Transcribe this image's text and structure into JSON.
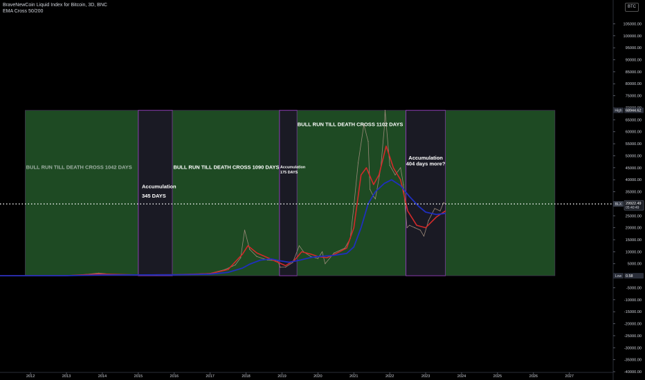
{
  "header": {
    "title": "BraveNewCoin Liquid Index for Bitcoin, 3D, BNC",
    "indicator": "EMA Cross 50/200",
    "symbol_button": "BTC"
  },
  "colors": {
    "background": "#000000",
    "bull_zone": "#1e4a23",
    "accumulation_zone": "#1a1a24",
    "zone_border": "#8a3bb0",
    "price_line": "#9c8a7a",
    "ema_fast": "#d42a2a",
    "ema_slow": "#1f2fbf",
    "current_line": "#ffffff",
    "axis_text": "#d1d4dc"
  },
  "chart_data": {
    "type": "line",
    "title": "",
    "xlabel": "",
    "ylabel": "",
    "xlim": [
      2011.15,
      2028.2
    ],
    "ylim": [
      -40000,
      108000
    ],
    "x_ticks": [
      "2012",
      "2013",
      "2014",
      "2015",
      "2016",
      "2017",
      "2018",
      "2019",
      "2020",
      "2021",
      "2022",
      "2023",
      "2024",
      "2025",
      "2026",
      "2027"
    ],
    "y_ticks": [
      "105000.00",
      "100000.00",
      "95000.00",
      "90000.00",
      "85000.00",
      "80000.00",
      "75000.00",
      "70000.00",
      "65000.00",
      "60000.00",
      "55000.00",
      "50000.00",
      "45000.00",
      "40000.00",
      "35000.00",
      "30000.00",
      "25000.00",
      "20000.00",
      "15000.00",
      "10000.00",
      "5000.00",
      "0.00",
      "-5000.00",
      "-10000.00",
      "-15000.00",
      "-20000.00",
      "-25000.00",
      "-30000.00",
      "-35000.00",
      "-40000.00"
    ],
    "price_markers": [
      {
        "label": "High",
        "value": "68944.62",
        "y": 68944.62
      },
      {
        "label": "BLX",
        "value": "29922.49",
        "sub": "05:40:49",
        "y": 29922.49
      },
      {
        "label": "Low",
        "value": "0.58",
        "y": 0.58
      }
    ],
    "zones": [
      {
        "type": "bull",
        "x0": 2011.85,
        "x1": 2015.0,
        "label": "BULL RUN TILL DEATH CROSS 1042 DAYS"
      },
      {
        "type": "accumulation",
        "x0": 2015.0,
        "x1": 2015.95,
        "label": "Accumulation",
        "label2": "345 DAYS"
      },
      {
        "type": "bull",
        "x0": 2015.95,
        "x1": 2018.93,
        "label": "BULL RUN TILL DEATH CROSS 1090 DAYS"
      },
      {
        "type": "accumulation",
        "x0": 2018.93,
        "x1": 2019.42,
        "label": "Accumulation",
        "label2": "175 DAYS"
      },
      {
        "type": "bull",
        "x0": 2019.42,
        "x1": 2022.45,
        "label": "BULL RUN TILL DEATH CROSS 1102 DAYS"
      },
      {
        "type": "accumulation",
        "x0": 2022.45,
        "x1": 2023.55,
        "label": "Accumulation",
        "label2": "404 days more?"
      },
      {
        "type": "bull",
        "x0": 2023.55,
        "x1": 2026.6,
        "label": ""
      }
    ],
    "series": [
      {
        "name": "",
        "role": "price",
        "points": [
          [
            2011.0,
            0.3
          ],
          [
            2012.0,
            5
          ],
          [
            2013.0,
            13
          ],
          [
            2013.3,
            200
          ],
          [
            2013.9,
            1100
          ],
          [
            2014.3,
            500
          ],
          [
            2014.9,
            330
          ],
          [
            2015.5,
            250
          ],
          [
            2016.0,
            430
          ],
          [
            2016.5,
            650
          ],
          [
            2017.0,
            1000
          ],
          [
            2017.4,
            2500
          ],
          [
            2017.7,
            4500
          ],
          [
            2017.85,
            7500
          ],
          [
            2017.96,
            19000
          ],
          [
            2018.1,
            11000
          ],
          [
            2018.3,
            8000
          ],
          [
            2018.6,
            6500
          ],
          [
            2018.88,
            6300
          ],
          [
            2018.95,
            3500
          ],
          [
            2019.1,
            3600
          ],
          [
            2019.3,
            5500
          ],
          [
            2019.48,
            12500
          ],
          [
            2019.6,
            10000
          ],
          [
            2019.8,
            8000
          ],
          [
            2020.0,
            7200
          ],
          [
            2020.12,
            10000
          ],
          [
            2020.2,
            5000
          ],
          [
            2020.45,
            9500
          ],
          [
            2020.75,
            11500
          ],
          [
            2020.9,
            15500
          ],
          [
            2021.0,
            29000
          ],
          [
            2021.12,
            47000
          ],
          [
            2021.28,
            63000
          ],
          [
            2021.4,
            56000
          ],
          [
            2021.45,
            36000
          ],
          [
            2021.55,
            33000
          ],
          [
            2021.6,
            32000
          ],
          [
            2021.75,
            45000
          ],
          [
            2021.85,
            62000
          ],
          [
            2021.87,
            68944
          ],
          [
            2022.0,
            46000
          ],
          [
            2022.15,
            42000
          ],
          [
            2022.3,
            45000
          ],
          [
            2022.38,
            38000
          ],
          [
            2022.42,
            30000
          ],
          [
            2022.48,
            20000
          ],
          [
            2022.55,
            21000
          ],
          [
            2022.7,
            20000
          ],
          [
            2022.85,
            19000
          ],
          [
            2022.95,
            16500
          ],
          [
            2023.08,
            23000
          ],
          [
            2023.25,
            28000
          ],
          [
            2023.4,
            27000
          ],
          [
            2023.5,
            30500
          ],
          [
            2023.55,
            29922
          ]
        ]
      },
      {
        "name": "",
        "role": "ema_fast",
        "points": [
          [
            2011.0,
            0.5
          ],
          [
            2013.0,
            15
          ],
          [
            2013.9,
            700
          ],
          [
            2015.0,
            350
          ],
          [
            2016.0,
            420
          ],
          [
            2017.0,
            900
          ],
          [
            2017.5,
            2600
          ],
          [
            2017.9,
            9000
          ],
          [
            2018.05,
            12500
          ],
          [
            2018.3,
            9500
          ],
          [
            2018.6,
            7500
          ],
          [
            2018.9,
            5500
          ],
          [
            2019.1,
            4200
          ],
          [
            2019.35,
            6500
          ],
          [
            2019.55,
            10000
          ],
          [
            2019.8,
            9000
          ],
          [
            2020.0,
            8000
          ],
          [
            2020.25,
            7500
          ],
          [
            2020.5,
            9200
          ],
          [
            2020.8,
            11500
          ],
          [
            2021.0,
            20000
          ],
          [
            2021.2,
            42000
          ],
          [
            2021.35,
            45000
          ],
          [
            2021.55,
            38000
          ],
          [
            2021.7,
            42000
          ],
          [
            2021.9,
            54000
          ],
          [
            2022.1,
            45000
          ],
          [
            2022.3,
            40000
          ],
          [
            2022.5,
            27000
          ],
          [
            2022.75,
            21000
          ],
          [
            2023.0,
            20000
          ],
          [
            2023.3,
            24500
          ],
          [
            2023.55,
            27000
          ]
        ]
      },
      {
        "name": "",
        "role": "ema_slow",
        "points": [
          [
            2011.0,
            0.4
          ],
          [
            2013.0,
            10
          ],
          [
            2014.0,
            300
          ],
          [
            2015.0,
            350
          ],
          [
            2016.0,
            380
          ],
          [
            2017.0,
            650
          ],
          [
            2017.5,
            1400
          ],
          [
            2017.9,
            3200
          ],
          [
            2018.1,
            4800
          ],
          [
            2018.4,
            6500
          ],
          [
            2018.7,
            7000
          ],
          [
            2018.95,
            6200
          ],
          [
            2019.2,
            5600
          ],
          [
            2019.5,
            6500
          ],
          [
            2019.8,
            7600
          ],
          [
            2020.0,
            8000
          ],
          [
            2020.4,
            8400
          ],
          [
            2020.8,
            9300
          ],
          [
            2021.0,
            12000
          ],
          [
            2021.2,
            20000
          ],
          [
            2021.4,
            30000
          ],
          [
            2021.6,
            35000
          ],
          [
            2021.85,
            38500
          ],
          [
            2022.05,
            40000
          ],
          [
            2022.3,
            37500
          ],
          [
            2022.55,
            33000
          ],
          [
            2022.8,
            29000
          ],
          [
            2023.0,
            26500
          ],
          [
            2023.3,
            25500
          ],
          [
            2023.55,
            26000
          ]
        ]
      }
    ],
    "current_value": 29922.49,
    "grid": false,
    "legend": "none"
  }
}
